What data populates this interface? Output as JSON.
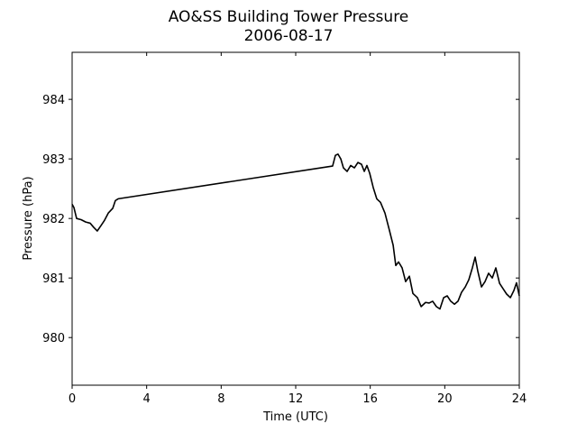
{
  "chart_data": {
    "type": "line",
    "title": "AO&SS Building Tower Pressure",
    "subtitle": "2006-08-17",
    "x_label": "Time (UTC)",
    "y_label": "Pressure (hPa)",
    "color": "#000000",
    "xlim": [
      0,
      24
    ],
    "xticks": [
      0,
      4,
      8,
      12,
      16,
      20,
      24
    ],
    "ylim": [
      979.2,
      984.79
    ],
    "yticks": [
      980,
      981,
      982,
      983,
      984
    ],
    "x": [
      0,
      0.1,
      0.24,
      0.48,
      0.73,
      0.97,
      1.16,
      1.35,
      1.55,
      1.74,
      1.94,
      2.18,
      2.32,
      2.47,
      13.98,
      14.13,
      14.27,
      14.42,
      14.56,
      14.76,
      14.95,
      15.15,
      15.34,
      15.53,
      15.68,
      15.82,
      15.97,
      16.16,
      16.35,
      16.55,
      16.79,
      17.03,
      17.23,
      17.37,
      17.52,
      17.71,
      17.9,
      18.1,
      18.29,
      18.53,
      18.73,
      18.97,
      19.16,
      19.35,
      19.55,
      19.74,
      19.94,
      20.13,
      20.32,
      20.52,
      20.71,
      20.9,
      21.1,
      21.29,
      21.48,
      21.63,
      21.77,
      21.97,
      22.16,
      22.35,
      22.55,
      22.74,
      22.94,
      23.13,
      23.32,
      23.52,
      23.71,
      23.85,
      24
    ],
    "values": [
      982.24,
      982.18,
      982.0,
      981.98,
      981.94,
      981.92,
      981.85,
      981.79,
      981.88,
      981.97,
      982.09,
      982.17,
      982.3,
      982.33,
      982.88,
      983.06,
      983.08,
      983.0,
      982.85,
      982.79,
      982.89,
      982.85,
      982.94,
      982.91,
      982.79,
      982.89,
      982.76,
      982.52,
      982.33,
      982.27,
      982.09,
      981.8,
      981.55,
      981.21,
      981.27,
      981.17,
      980.94,
      981.03,
      980.74,
      980.67,
      980.52,
      980.59,
      980.58,
      980.61,
      980.52,
      980.48,
      980.67,
      980.7,
      980.61,
      980.56,
      980.61,
      980.76,
      980.85,
      980.97,
      981.17,
      981.35,
      981.12,
      980.85,
      980.94,
      981.08,
      981.0,
      981.17,
      980.91,
      980.82,
      980.73,
      980.67,
      980.79,
      980.92,
      980.7
    ]
  }
}
